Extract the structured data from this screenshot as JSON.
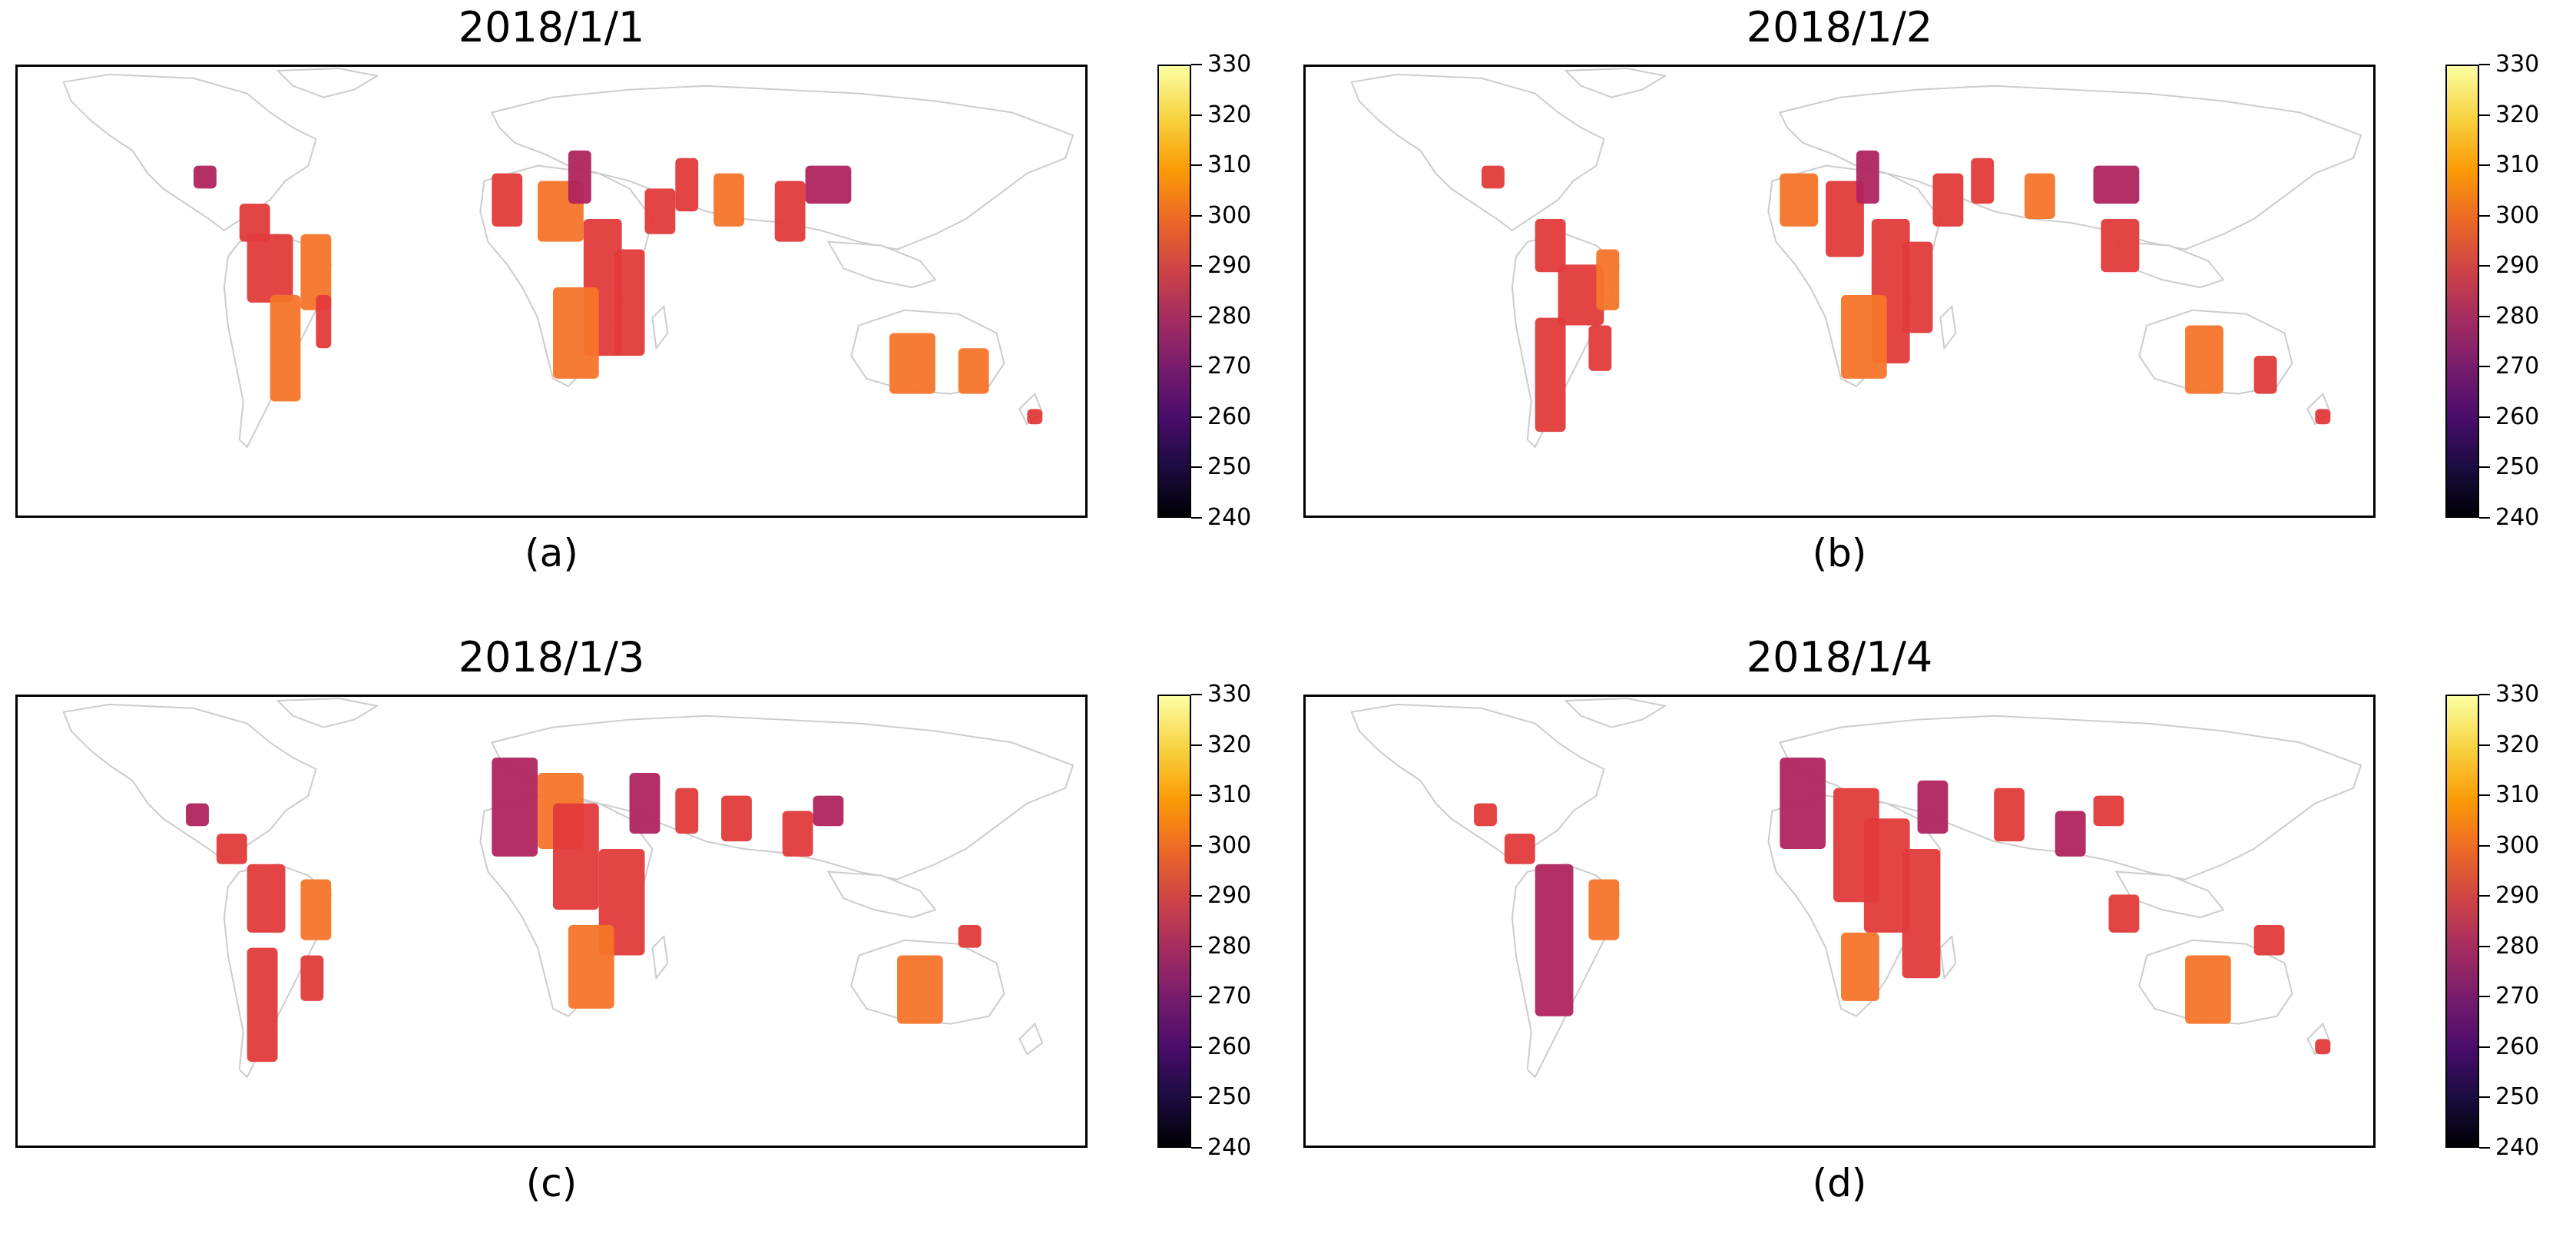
{
  "figure": {
    "colorbar": {
      "ticks": [
        "330",
        "320",
        "310",
        "300",
        "290",
        "280",
        "270",
        "260",
        "250",
        "240"
      ],
      "min": 240,
      "max": 330,
      "colormap": "inferno"
    },
    "panels": [
      {
        "id": "a",
        "title": "2018/1/1",
        "label": "(a)"
      },
      {
        "id": "b",
        "title": "2018/1/2",
        "label": "(b)"
      },
      {
        "id": "c",
        "title": "2018/1/3",
        "label": "(c)"
      },
      {
        "id": "d",
        "title": "2018/1/4",
        "label": "(d)"
      }
    ]
  },
  "colors": {
    "land_outline": "#cccccc",
    "data_hot": "#f5752a",
    "data_mid": "#e23b3b",
    "data_cool": "#b0245e",
    "data_cold": "#7a1a6e"
  }
}
